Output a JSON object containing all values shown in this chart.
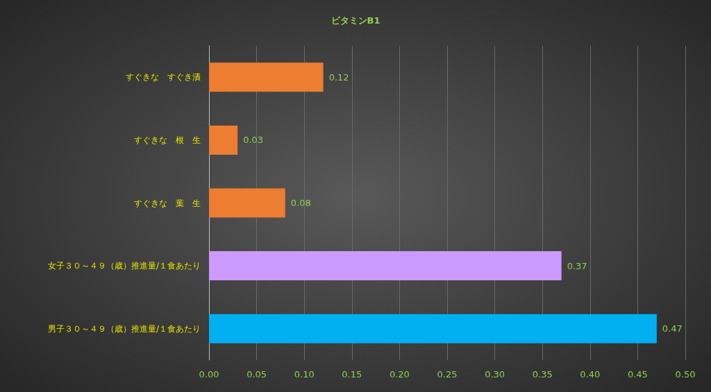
{
  "chart_data": {
    "type": "bar",
    "orientation": "horizontal",
    "title": "ビタミンB1",
    "categories": [
      "すぐきな　すぐき漬",
      "すぐきな　根　生",
      "すぐきな　葉　生",
      "女子３０～４９（歳）推進量/１食あたり",
      "男子３０～４９（歳）推進量/１食あたり"
    ],
    "values": [
      0.12,
      0.03,
      0.08,
      0.37,
      0.47
    ],
    "colors": [
      "#ed7d31",
      "#ed7d31",
      "#ed7d31",
      "#cc99ff",
      "#00b0f0"
    ],
    "xlim": [
      0,
      0.5
    ],
    "xticks": [
      {
        "value": 0,
        "label": "0.00"
      },
      {
        "value": 0.05,
        "label": "0.05"
      },
      {
        "value": 0.1,
        "label": "0.10"
      },
      {
        "value": 0.15,
        "label": "0.15"
      },
      {
        "value": 0.2,
        "label": "0.20"
      },
      {
        "value": 0.25,
        "label": "0.25"
      },
      {
        "value": 0.3,
        "label": "0.30"
      },
      {
        "value": 0.35,
        "label": "0.35"
      },
      {
        "value": 0.4,
        "label": "0.40"
      },
      {
        "value": 0.45,
        "label": "0.45"
      },
      {
        "value": 0.5,
        "label": "0.50"
      }
    ],
    "grid": "x",
    "data_labels": true
  }
}
